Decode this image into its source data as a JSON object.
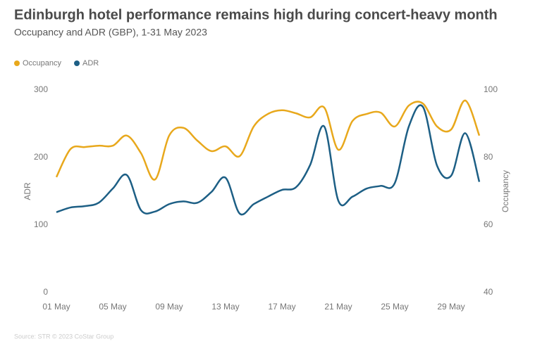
{
  "chart_data": {
    "type": "line",
    "title": "Edinburgh hotel performance remains high during concert-heavy month",
    "subtitle": "Occupancy and ADR (GBP), 1-31 May 2023",
    "source": "Source: STR © 2023 CoStar Group",
    "x": [
      1,
      2,
      3,
      4,
      5,
      6,
      7,
      8,
      9,
      10,
      11,
      12,
      13,
      14,
      15,
      16,
      17,
      18,
      19,
      20,
      21,
      22,
      23,
      24,
      25,
      26,
      27,
      28,
      29,
      30,
      31
    ],
    "xlim": [
      1,
      31
    ],
    "xticks": [
      {
        "value": 1,
        "label": "01 May"
      },
      {
        "value": 5,
        "label": "05 May"
      },
      {
        "value": 9,
        "label": "09 May"
      },
      {
        "value": 13,
        "label": "13 May"
      },
      {
        "value": 17,
        "label": "17 May"
      },
      {
        "value": 21,
        "label": "21 May"
      },
      {
        "value": 25,
        "label": "25 May"
      },
      {
        "value": 29,
        "label": "29 May"
      }
    ],
    "ylabel": "ADR",
    "y2label": "Occupancy",
    "ylim": [
      0,
      300
    ],
    "yticks": [
      0,
      100,
      200,
      300
    ],
    "y2lim": [
      40,
      100
    ],
    "y2ticks": [
      40,
      60,
      80,
      100
    ],
    "grid": false,
    "legend": "top-left",
    "series": [
      {
        "name": "Occupancy",
        "color": "#e8a81c",
        "axis": "y2",
        "values": [
          74.2,
          82.5,
          83.1,
          83.5,
          83.5,
          86.5,
          81.3,
          73.5,
          86.5,
          88.8,
          85,
          81.9,
          83.3,
          80.4,
          89.2,
          92.9,
          94,
          93.1,
          91.9,
          94.8,
          82.3,
          90.8,
          92.9,
          93.3,
          89.2,
          95.4,
          96,
          89.2,
          88.3,
          96.9,
          86.5
        ]
      },
      {
        "name": "ADR",
        "color": "#1d5f85",
        "values": [
          119,
          126,
          128,
          133,
          154,
          174,
          122,
          120,
          131,
          135,
          133,
          149,
          170,
          117,
          131,
          142,
          152,
          156,
          189,
          246,
          136,
          142,
          154,
          158,
          162,
          246,
          275,
          188,
          173,
          236,
          164
        ]
      }
    ]
  }
}
